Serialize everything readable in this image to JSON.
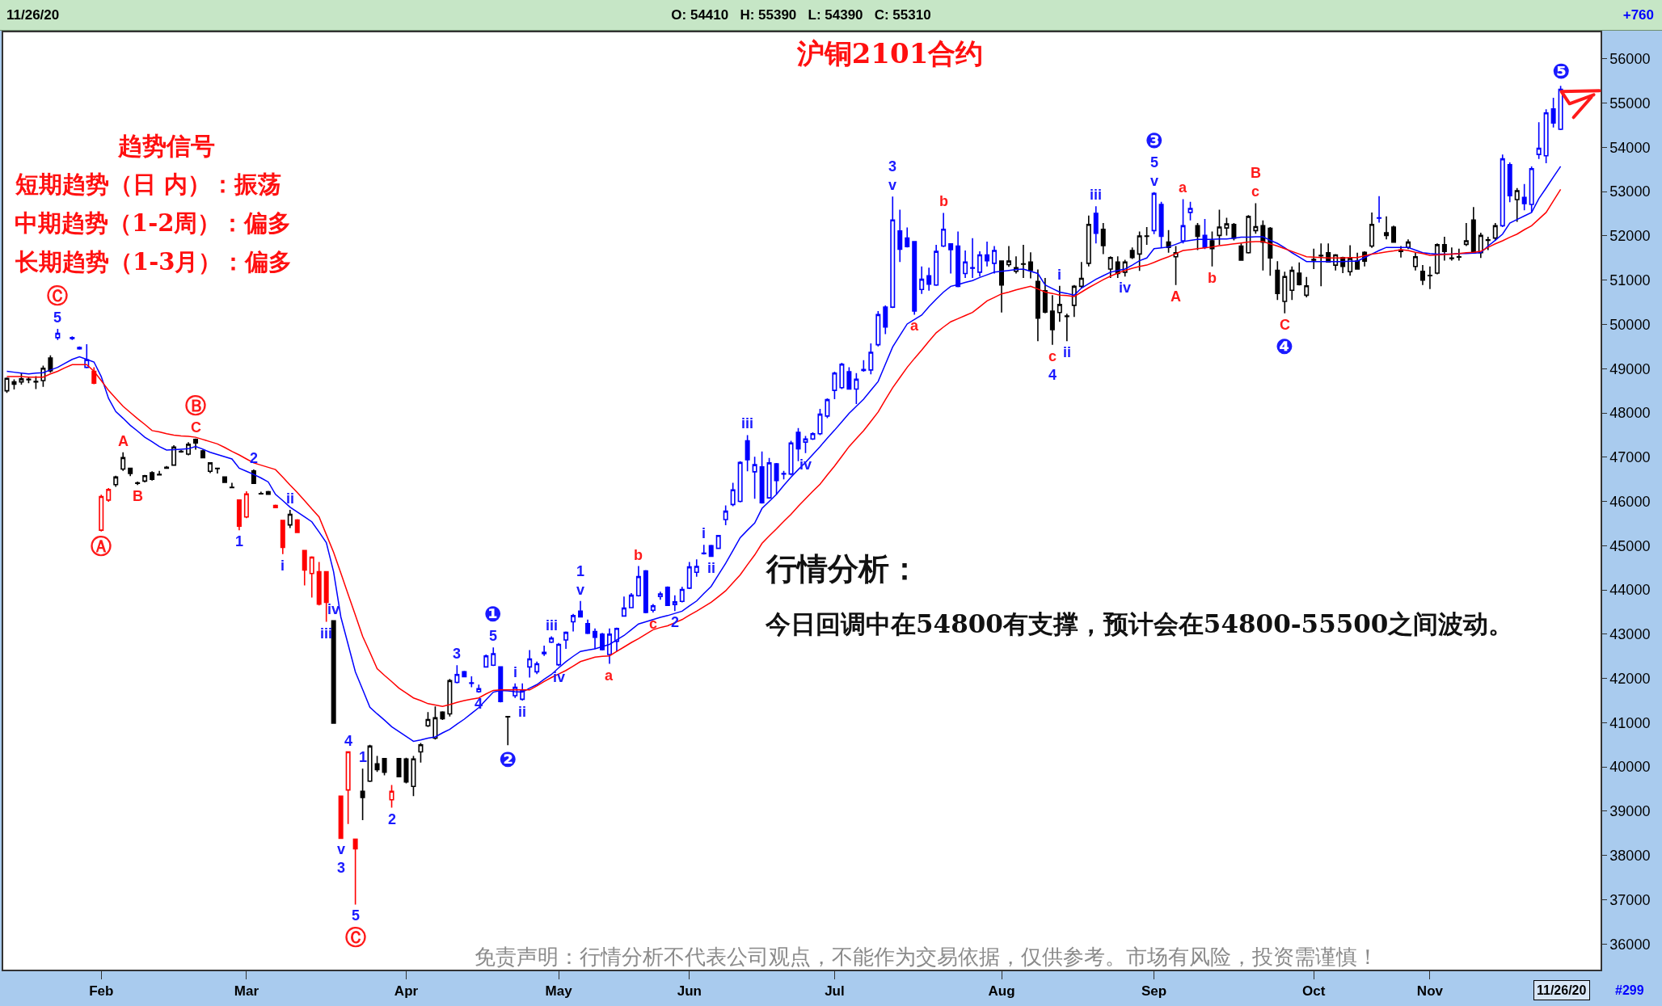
{
  "chart_data": {
    "type": "candlestick",
    "title": "沪铜2101合约",
    "annotations": [
      "11/26/20",
      "O: 54410   H: 55390   L: 54390   C: 55310",
      "+760",
      "趋势信号",
      "短期趋势（日 内）：振荡",
      "中期趋势（1-2周）：偏多",
      "长期趋势（1-3月）：偏多",
      "行情分析：",
      "今日回调中在54800有支撑，预计会在54800-55500之间波动。",
      "免责声明：行情分析不代表公司观点，不能作为交易依据，仅供参考。市场有风险，投资需谨慎！",
      "11/26/20",
      "#299",
      {
        "text": "5",
        "y": 49900
      },
      {
        "text": "Ⓒ",
        "y": 49900
      },
      {
        "text": "Ⓐ",
        "y": 45320
      },
      {
        "text": "A",
        "y": 47110
      },
      {
        "text": "B",
        "y": 46370
      },
      {
        "text": "C",
        "y": 47420
      },
      {
        "text": "Ⓑ",
        "y": 47420
      },
      {
        "text": "1",
        "y": 45350
      },
      {
        "text": "2",
        "y": 46720
      },
      {
        "text": "i",
        "y": 44810
      },
      {
        "text": "ii",
        "y": 45810
      },
      {
        "text": "iii",
        "y": 43280
      },
      {
        "text": "iv",
        "y": 43310
      },
      {
        "text": "v",
        "y": 38390
      },
      {
        "text": "3",
        "y": 38390
      },
      {
        "text": "4",
        "y": 40340
      },
      {
        "text": "5",
        "y": 36890
      },
      {
        "text": "Ⓒ",
        "y": 36890
      },
      {
        "text": "1",
        "y": 39960
      },
      {
        "text": "2",
        "y": 39080
      },
      {
        "text": "3",
        "y": 42300
      },
      {
        "text": "4",
        "y": 41680
      },
      {
        "text": "5",
        "y": 42700
      },
      {
        "text": "❶",
        "y": 42700
      },
      {
        "text": "❷",
        "y": 40490
      },
      {
        "text": "i",
        "y": 41890
      },
      {
        "text": "ii",
        "y": 41500
      },
      {
        "text": "iii",
        "y": 42950
      },
      {
        "text": "iv",
        "y": 42280
      },
      {
        "text": "v",
        "y": 43750
      },
      {
        "text": "1",
        "y": 43750
      },
      {
        "text": "a",
        "y": 42330
      },
      {
        "text": "b",
        "y": 44540
      },
      {
        "text": "c",
        "y": 43490
      },
      {
        "text": "2",
        "y": 43520
      },
      {
        "text": "i",
        "y": 45020
      },
      {
        "text": "ii",
        "y": 44750
      },
      {
        "text": "iii",
        "y": 47500
      },
      {
        "text": "iv",
        "y": 47090
      },
      {
        "text": "v",
        "y": 52890
      },
      {
        "text": "3",
        "y": 52890
      },
      {
        "text": "a",
        "y": 50220
      },
      {
        "text": "b",
        "y": 52520
      },
      {
        "text": "c",
        "y": 49540
      },
      {
        "text": "4",
        "y": 49540
      },
      {
        "text": "i",
        "y": 50870
      },
      {
        "text": "ii",
        "y": 49620
      },
      {
        "text": "iii",
        "y": 52670
      },
      {
        "text": "iv",
        "y": 51080
      },
      {
        "text": "v",
        "y": 52990
      },
      {
        "text": "5",
        "y": 52990
      },
      {
        "text": "❸",
        "y": 52990
      },
      {
        "text": "A",
        "y": 50890
      },
      {
        "text": "a",
        "y": 52830
      },
      {
        "text": "b",
        "y": 51310
      },
      {
        "text": "c",
        "y": 52740
      },
      {
        "text": "B",
        "y": 52740
      },
      {
        "text": "C",
        "y": 50250
      },
      {
        "text": "❹",
        "y": 50250
      },
      {
        "text": "❺",
        "y": 55390
      }
    ],
    "categories": [
      null,
      null,
      null,
      null,
      null,
      null,
      null,
      null,
      null,
      null,
      null,
      null,
      null,
      "Feb",
      null,
      null,
      null,
      null,
      null,
      null,
      null,
      null,
      null,
      null,
      null,
      null,
      null,
      null,
      null,
      null,
      null,
      null,
      null,
      "Mar",
      null,
      null,
      null,
      null,
      null,
      null,
      null,
      null,
      null,
      null,
      null,
      null,
      null,
      null,
      null,
      null,
      null,
      null,
      null,
      null,
      null,
      "Apr",
      null,
      null,
      null,
      null,
      null,
      null,
      null,
      null,
      null,
      null,
      null,
      null,
      null,
      null,
      null,
      null,
      null,
      null,
      null,
      null,
      "May",
      null,
      null,
      null,
      null,
      null,
      null,
      null,
      null,
      null,
      null,
      null,
      null,
      null,
      null,
      null,
      null,
      null,
      "Jun",
      null,
      null,
      null,
      null,
      null,
      null,
      null,
      null,
      null,
      null,
      null,
      null,
      null,
      null,
      null,
      null,
      null,
      null,
      null,
      "Jul",
      null,
      null,
      null,
      null,
      null,
      null,
      null,
      null,
      null,
      null,
      null,
      null,
      null,
      null,
      null,
      null,
      null,
      null,
      null,
      null,
      null,
      null,
      "Aug",
      null,
      null,
      null,
      null,
      null,
      null,
      null,
      null,
      null,
      null,
      null,
      null,
      null,
      null,
      null,
      null,
      null,
      null,
      null,
      null,
      "Sep",
      null,
      null,
      null,
      null,
      null,
      null,
      null,
      null,
      null,
      null,
      null,
      null,
      null,
      null,
      null,
      null,
      null,
      null,
      null,
      null,
      null,
      "Oct",
      null,
      null,
      null,
      null,
      null,
      null,
      null,
      null,
      null,
      null,
      null,
      null,
      null,
      null,
      null,
      "Nov",
      null,
      null,
      null,
      null,
      null,
      null,
      null,
      null,
      null,
      null,
      null,
      null,
      null,
      null,
      null,
      null,
      null,
      null,
      null,
      null,
      null,
      null,
      null
    ],
    "ohlc": [
      [
        48500,
        48800,
        48450,
        48780
      ],
      [
        48700,
        48760,
        48530,
        48650
      ],
      [
        48700,
        48910,
        48640,
        48770
      ],
      [
        48750,
        48820,
        48670,
        48760
      ],
      [
        48710,
        48830,
        48540,
        48700
      ],
      [
        48730,
        49070,
        48590,
        49010
      ],
      [
        49240,
        49300,
        48910,
        48950
      ],
      [
        49700,
        49900,
        49650,
        49800
      ],
      null,
      [
        49700,
        49730,
        49650,
        49680
      ],
      [
        49480,
        49500,
        49430,
        49450
      ],
      [
        49030,
        49550,
        49010,
        49200
      ],
      [
        48940,
        49030,
        48650,
        48670
      ],
      [
        45350,
        46150,
        45320,
        46110
      ],
      [
        46030,
        46300,
        45990,
        46270
      ],
      [
        46380,
        46580,
        46330,
        46550
      ],
      [
        46730,
        47110,
        46690,
        46990
      ],
      [
        46750,
        46760,
        46570,
        46630
      ],
      [
        46420,
        46450,
        46370,
        46410
      ],
      [
        46460,
        46600,
        46430,
        46580
      ],
      [
        46650,
        46680,
        46470,
        46500
      ],
      [
        46610,
        46690,
        46590,
        46600
      ],
      [
        46770,
        46800,
        46740,
        46750
      ],
      [
        46820,
        47270,
        46810,
        47230
      ],
      [
        47130,
        47160,
        47100,
        47120
      ],
      [
        47070,
        47340,
        47040,
        47290
      ],
      [
        47400,
        47420,
        47170,
        47320
      ],
      [
        47140,
        47170,
        46980,
        46990
      ],
      [
        46680,
        46880,
        46640,
        46870
      ],
      [
        46750,
        46760,
        46630,
        46740
      ],
      [
        46550,
        46560,
        46420,
        46430
      ],
      [
        46320,
        46420,
        46300,
        46310
      ],
      [
        46030,
        46040,
        45350,
        45440
      ],
      [
        45650,
        46230,
        45620,
        46170
      ],
      [
        46690,
        46720,
        46400,
        46410
      ],
      [
        46180,
        46220,
        46160,
        46170
      ],
      [
        46220,
        46240,
        46150,
        46160
      ],
      [
        45910,
        45930,
        45850,
        45860
      ],
      [
        45570,
        45580,
        44810,
        44960
      ],
      [
        45470,
        45810,
        45400,
        45710
      ],
      [
        45580,
        45600,
        45290,
        45300
      ],
      [
        44890,
        44900,
        44100,
        44450
      ],
      [
        44370,
        44760,
        43830,
        44740
      ],
      [
        44410,
        44630,
        43650,
        43680
      ],
      [
        44410,
        44420,
        43280,
        43720
      ],
      [
        43300,
        43310,
        40990,
        40990
      ],
      [
        39340,
        39350,
        38390,
        38390
      ],
      [
        39480,
        40340,
        38710,
        40340
      ],
      [
        38370,
        38380,
        36890,
        38150
      ],
      [
        39450,
        39960,
        38800,
        39310
      ],
      [
        39680,
        40500,
        39660,
        40470
      ],
      [
        40070,
        40250,
        39890,
        39940
      ],
      [
        40190,
        40200,
        39810,
        39880
      ],
      [
        39260,
        39590,
        39080,
        39450
      ],
      [
        40190,
        40200,
        39770,
        39780
      ],
      [
        40180,
        40210,
        39630,
        39660
      ],
      [
        39560,
        40250,
        39340,
        40180
      ],
      [
        40340,
        40540,
        40100,
        40500
      ],
      [
        40930,
        41240,
        40900,
        41070
      ],
      [
        40650,
        41370,
        40620,
        41110
      ],
      [
        41240,
        41260,
        41060,
        41090
      ],
      [
        41200,
        41990,
        41140,
        41950
      ],
      [
        41910,
        42300,
        41890,
        42090
      ],
      [
        42150,
        42170,
        42030,
        42040
      ],
      [
        41900,
        42050,
        41800,
        41890
      ],
      [
        41700,
        41860,
        41680,
        41770
      ],
      [
        42260,
        42540,
        42250,
        42510
      ],
      [
        42300,
        42700,
        42280,
        42560
      ],
      [
        42260,
        42270,
        41460,
        41480
      ],
      [
        41140,
        41150,
        40490,
        41130
      ],
      [
        41610,
        41890,
        41560,
        41800
      ],
      [
        41530,
        41890,
        41500,
        41730
      ],
      [
        42260,
        42640,
        42020,
        42440
      ],
      [
        42150,
        42380,
        42100,
        42330
      ],
      [
        42560,
        42740,
        42510,
        42590
      ],
      [
        42820,
        42950,
        42800,
        42910
      ],
      [
        42310,
        42800,
        42280,
        42770
      ],
      [
        42870,
        43060,
        42670,
        43040
      ],
      [
        43280,
        43460,
        43060,
        43420
      ],
      [
        43520,
        43750,
        43380,
        43390
      ],
      [
        43240,
        43330,
        43000,
        43020
      ],
      [
        43060,
        43130,
        42670,
        42930
      ],
      [
        43000,
        43030,
        42630,
        42650
      ],
      [
        42540,
        43130,
        42330,
        43000
      ],
      [
        42840,
        43150,
        42610,
        43130
      ],
      [
        43410,
        43850,
        43400,
        43590
      ],
      [
        43600,
        43930,
        43590,
        43880
      ],
      [
        43870,
        44540,
        43850,
        44300
      ],
      [
        44430,
        44450,
        43470,
        43490
      ],
      [
        43540,
        43680,
        43490,
        43640
      ],
      [
        43850,
        43960,
        43780,
        43910
      ],
      [
        44060,
        44080,
        43640,
        43650
      ],
      [
        43670,
        43880,
        43520,
        43730
      ],
      [
        43740,
        44070,
        43720,
        44010
      ],
      [
        44040,
        44630,
        44020,
        44520
      ],
      [
        44400,
        44690,
        44300,
        44530
      ],
      [
        44820,
        45020,
        44800,
        44830
      ],
      [
        45000,
        45020,
        44750,
        44760
      ],
      [
        44940,
        45240,
        44930,
        45230
      ],
      [
        45590,
        45910,
        45460,
        45780
      ],
      [
        45930,
        46420,
        45890,
        46260
      ],
      [
        46000,
        46910,
        45980,
        46880
      ],
      [
        47370,
        47500,
        46680,
        46940
      ],
      [
        46670,
        47010,
        46060,
        46830
      ],
      [
        46780,
        47130,
        45950,
        45970
      ],
      [
        46080,
        46980,
        46060,
        46870
      ],
      [
        46850,
        46870,
        46160,
        46470
      ],
      [
        46620,
        46690,
        46500,
        46630
      ],
      [
        46620,
        47370,
        46590,
        47320
      ],
      [
        47560,
        47660,
        46910,
        47190
      ],
      [
        47340,
        47480,
        47090,
        47410
      ],
      [
        47410,
        47560,
        47390,
        47530
      ],
      [
        47530,
        48090,
        47500,
        47970
      ],
      [
        47930,
        48330,
        47880,
        48300
      ],
      [
        48510,
        48930,
        48310,
        48900
      ],
      [
        48570,
        49130,
        48540,
        49100
      ],
      [
        48930,
        49030,
        48530,
        48540
      ],
      [
        48540,
        48900,
        48200,
        48760
      ],
      [
        48960,
        49190,
        48930,
        48980
      ],
      [
        48970,
        49570,
        48870,
        49370
      ],
      [
        49540,
        50300,
        49500,
        50220
      ],
      [
        50390,
        50430,
        49780,
        49940
      ],
      [
        50390,
        52890,
        50370,
        52360
      ],
      [
        52110,
        52590,
        51410,
        51700
      ],
      [
        51950,
        52190,
        51740,
        51760
      ],
      [
        51870,
        51880,
        50220,
        50300
      ],
      [
        50790,
        51310,
        50690,
        51020
      ],
      [
        51100,
        51280,
        50760,
        50910
      ],
      [
        50890,
        51800,
        50870,
        51650
      ],
      [
        51770,
        52520,
        51750,
        52150
      ],
      [
        51820,
        51830,
        51150,
        51690
      ],
      [
        51770,
        52100,
        50840,
        50860
      ],
      [
        51150,
        51670,
        51050,
        51410
      ],
      [
        51270,
        51950,
        51050,
        51280
      ],
      [
        51180,
        51650,
        51080,
        51570
      ],
      [
        51570,
        51870,
        51310,
        51440
      ],
      [
        51380,
        51770,
        51150,
        51670
      ],
      [
        51430,
        51440,
        50270,
        50890
      ],
      [
        51350,
        51770,
        51300,
        51430
      ],
      [
        51200,
        51540,
        51150,
        51280
      ],
      [
        51360,
        51800,
        51050,
        51370
      ],
      [
        51410,
        51630,
        51040,
        51220
      ],
      [
        50970,
        51240,
        49620,
        50140
      ],
      [
        50760,
        51050,
        50250,
        50280
      ],
      [
        50300,
        50660,
        49540,
        49880
      ],
      [
        50270,
        50870,
        50060,
        50450
      ],
      [
        50190,
        50240,
        49620,
        50180
      ],
      [
        50430,
        50890,
        50170,
        50860
      ],
      [
        50860,
        51410,
        50820,
        51040
      ],
      [
        51380,
        52460,
        51310,
        52260
      ],
      [
        52510,
        52670,
        51830,
        52060
      ],
      [
        52150,
        52290,
        51590,
        51780
      ],
      [
        51250,
        51540,
        51050,
        51510
      ],
      [
        51410,
        51540,
        51050,
        51150
      ],
      [
        51180,
        51460,
        51080,
        51410
      ],
      [
        51670,
        51740,
        51480,
        51510
      ],
      [
        51590,
        52100,
        51210,
        52000
      ],
      [
        51990,
        52200,
        51800,
        52000
      ],
      [
        52120,
        52990,
        52040,
        52960
      ],
      [
        52710,
        52770,
        51740,
        51990
      ],
      [
        51860,
        52130,
        51620,
        51740
      ],
      [
        51530,
        51770,
        50890,
        51620
      ],
      [
        51890,
        52830,
        51830,
        52230
      ],
      [
        52530,
        52770,
        52350,
        52620
      ],
      [
        52230,
        52290,
        51680,
        51990
      ],
      [
        52010,
        52380,
        51700,
        51740
      ],
      [
        51890,
        52100,
        51310,
        51710
      ],
      [
        52010,
        52590,
        51800,
        52200
      ],
      [
        52180,
        52410,
        52010,
        52270
      ],
      [
        52260,
        52290,
        51900,
        51950
      ],
      [
        51770,
        51830,
        51440,
        51450
      ],
      [
        51620,
        52470,
        51600,
        52440
      ],
      [
        52120,
        52740,
        52050,
        52210
      ],
      [
        52230,
        52350,
        51220,
        51860
      ],
      [
        52170,
        52200,
        51100,
        51500
      ],
      [
        51220,
        51430,
        50550,
        50700
      ],
      [
        50520,
        51190,
        50250,
        51080
      ],
      [
        50770,
        51310,
        50550,
        51220
      ],
      [
        51160,
        51400,
        50880,
        50900
      ],
      [
        50660,
        51070,
        50610,
        50870
      ],
      [
        51450,
        51710,
        51250,
        51470
      ],
      [
        51550,
        51830,
        50860,
        51560
      ],
      [
        51620,
        51830,
        51400,
        51410
      ],
      [
        51340,
        51590,
        51220,
        51570
      ],
      [
        51510,
        51530,
        51160,
        51310
      ],
      [
        51190,
        51790,
        51100,
        51490
      ],
      [
        51430,
        51620,
        51240,
        51250
      ],
      [
        51630,
        51650,
        51310,
        51430
      ],
      [
        51770,
        52530,
        51730,
        52260
      ],
      [
        52400,
        52900,
        52300,
        52410
      ],
      [
        52070,
        52440,
        51920,
        52010
      ],
      [
        52200,
        52230,
        51850,
        51860
      ],
      [
        51650,
        51770,
        51510,
        51680
      ],
      [
        51740,
        51920,
        51700,
        51860
      ],
      [
        51310,
        51620,
        51220,
        51530
      ],
      [
        51200,
        51340,
        50890,
        51000
      ],
      [
        51100,
        51310,
        50800,
        51110
      ],
      [
        51160,
        51830,
        51130,
        51800
      ],
      [
        51800,
        51980,
        51440,
        51650
      ],
      [
        51500,
        51740,
        51440,
        51490
      ],
      [
        51520,
        51710,
        51440,
        51530
      ],
      [
        51810,
        52290,
        51770,
        51890
      ],
      [
        52360,
        52650,
        51600,
        51620
      ],
      [
        51620,
        52070,
        51500,
        52010
      ],
      [
        51910,
        51980,
        51680,
        51900
      ],
      [
        51950,
        52290,
        51890,
        52230
      ],
      [
        52230,
        53840,
        52200,
        53740
      ],
      [
        53610,
        53660,
        52760,
        52910
      ],
      [
        52820,
        53080,
        52320,
        53020
      ],
      [
        52870,
        53170,
        52580,
        52730
      ],
      [
        52710,
        53570,
        52540,
        53520
      ],
      [
        53840,
        54570,
        53740,
        53980
      ],
      [
        53810,
        54860,
        53640,
        54780
      ],
      [
        54870,
        55120,
        54450,
        54550
      ],
      [
        54410,
        55390,
        54390,
        55310
      ],
      null,
      null,
      null,
      null,
      null
    ],
    "colors": [
      "#000000",
      "#000000",
      "#000000",
      "#000000",
      "#000000",
      "#000000",
      "#000000",
      "#0000ff",
      null,
      "#0000ff",
      "#0000ff",
      "#0000ff",
      "#ff0000",
      "#ff0000",
      "#ff0000",
      "#000000",
      "#000000",
      "#000000",
      "#000000",
      "#000000",
      "#000000",
      "#000000",
      "#000000",
      "#000000",
      "#000000",
      "#000000",
      "#000000",
      "#000000",
      "#000000",
      "#000000",
      "#000000",
      "#000000",
      "#ff0000",
      "#ff0000",
      "#000000",
      "#000000",
      "#000000",
      "#ff0000",
      "#ff0000",
      "#000000",
      "#ff0000",
      "#ff0000",
      "#ff0000",
      "#ff0000",
      "#ff0000",
      "#000000",
      "#ff0000",
      "#ff0000",
      "#ff0000",
      "#000000",
      "#000000",
      "#000000",
      "#000000",
      "#ff0000",
      "#000000",
      "#000000",
      "#000000",
      "#000000",
      "#000000",
      "#000000",
      "#000000",
      "#000000",
      "#0000ff",
      "#0000ff",
      "#0000ff",
      "#0000ff",
      "#0000ff",
      "#0000ff",
      "#0000ff",
      "#000000",
      "#0000ff",
      "#0000ff",
      "#0000ff",
      "#0000ff",
      "#0000ff",
      "#0000ff",
      "#0000ff",
      "#0000ff",
      "#0000ff",
      "#0000ff",
      "#0000ff",
      "#0000ff",
      "#0000ff",
      "#0000ff",
      "#0000ff",
      "#0000ff",
      "#0000ff",
      "#0000ff",
      "#0000ff",
      "#0000ff",
      "#0000ff",
      "#0000ff",
      "#0000ff",
      "#0000ff",
      "#0000ff",
      "#0000ff",
      "#0000ff",
      "#0000ff",
      "#0000ff",
      "#0000ff",
      "#0000ff",
      "#0000ff",
      "#0000ff",
      "#0000ff",
      "#0000ff",
      "#0000ff",
      "#0000ff",
      "#0000ff",
      "#0000ff",
      "#0000ff",
      "#0000ff",
      "#0000ff",
      "#0000ff",
      "#0000ff",
      "#0000ff",
      "#0000ff",
      "#0000ff",
      "#0000ff",
      "#0000ff",
      "#0000ff",
      "#0000ff",
      "#0000ff",
      "#0000ff",
      "#0000ff",
      "#0000ff",
      "#0000ff",
      "#0000ff",
      "#0000ff",
      "#0000ff",
      "#0000ff",
      "#0000ff",
      "#0000ff",
      "#0000ff",
      "#0000ff",
      "#0000ff",
      "#0000ff",
      "#0000ff",
      "#000000",
      "#000000",
      "#000000",
      "#000000",
      "#000000",
      "#000000",
      "#000000",
      "#000000",
      "#000000",
      "#000000",
      "#000000",
      "#000000",
      "#000000",
      "#0000ff",
      "#000000",
      "#000000",
      "#000000",
      "#000000",
      "#000000",
      "#000000",
      "#000000",
      "#0000ff",
      "#0000ff",
      "#000000",
      "#000000",
      "#0000ff",
      "#0000ff",
      "#000000",
      "#0000ff",
      "#000000",
      "#000000",
      "#000000",
      "#000000",
      "#000000",
      "#000000",
      "#000000",
      "#000000",
      "#000000",
      "#000000",
      "#000000",
      "#000000",
      "#000000",
      "#000000",
      "#000000",
      "#000000",
      "#000000",
      "#000000",
      "#000000",
      "#000000",
      "#000000",
      "#000000",
      "#000000",
      "#0000ff",
      "#000000",
      "#000000",
      "#000000",
      "#000000",
      "#000000",
      "#000000",
      "#000000",
      "#000000",
      "#000000",
      "#000000",
      "#000000",
      "#000000",
      "#000000",
      "#000000",
      "#000000",
      "#000000",
      "#0000ff",
      "#0000ff",
      "#000000",
      "#0000ff",
      "#0000ff",
      "#0000ff",
      "#0000ff",
      "#0000ff",
      "#0000ff",
      null,
      null,
      null,
      null,
      null
    ],
    "series": [
      {
        "type": "line",
        "color": "#0000ff",
        "values": [
          48940,
          48920,
          48900,
          48880,
          48900,
          48910,
          48970,
          49030,
          49120,
          49210,
          49270,
          49210,
          49150,
          48820,
          48330,
          48030,
          47880,
          47720,
          47590,
          47450,
          47350,
          47240,
          47160,
          47170,
          47180,
          47190,
          47240,
          47180,
          47110,
          47060,
          47010,
          46960,
          46750,
          46680,
          46610,
          46530,
          46440,
          46160,
          46020,
          45870,
          45760,
          45650,
          45540,
          45310,
          45070,
          44410,
          43390,
          42770,
          42150,
          41750,
          41350,
          41200,
          41060,
          40910,
          40800,
          40690,
          40580,
          40610,
          40650,
          40680,
          40770,
          40850,
          40970,
          41080,
          41210,
          41340,
          41520,
          41690,
          41730,
          41720,
          41700,
          41690,
          41780,
          41860,
          41980,
          42090,
          42240,
          42380,
          42500,
          42610,
          42640,
          42670,
          42720,
          42770,
          42870,
          42970,
          43100,
          43230,
          43280,
          43330,
          43380,
          43420,
          43470,
          43520,
          43640,
          43750,
          43920,
          44080,
          44340,
          44600,
          44890,
          45180,
          45350,
          45510,
          45840,
          46000,
          46160,
          46360,
          46550,
          46720,
          46880,
          47060,
          47240,
          47430,
          47610,
          47800,
          47990,
          48150,
          48310,
          48510,
          48710,
          49100,
          49490,
          49750,
          50010,
          50110,
          50210,
          50400,
          50570,
          50730,
          50860,
          50900,
          50950,
          50990,
          51060,
          51120,
          51180,
          51200,
          51220,
          51240,
          51250,
          51200,
          51150,
          50890,
          50810,
          50730,
          50700,
          50660,
          50820,
          50920,
          51020,
          51100,
          51180,
          51220,
          51250,
          51340,
          51440,
          51500,
          51710,
          51730,
          51750,
          51810,
          51870,
          51900,
          51920,
          51920,
          51920,
          51930,
          51930,
          51950,
          51970,
          51970,
          51980,
          51980,
          51900,
          51830,
          51730,
          51620,
          51520,
          51420,
          51420,
          51420,
          51420,
          51420,
          51420,
          51430,
          51430,
          51510,
          51590,
          51670,
          51740,
          51740,
          51740,
          51740,
          51680,
          51620,
          51600,
          51590,
          51590,
          51590,
          51600,
          51600,
          51610,
          51620,
          51770,
          51900,
          52040,
          52290,
          52370,
          52450,
          52530,
          52840,
          53080,
          53330,
          53570,
          null,
          null,
          null,
          null,
          null
        ]
      },
      {
        "type": "line",
        "color": "#ff0000",
        "values": [
          48820,
          48820,
          48820,
          48810,
          48810,
          48810,
          48880,
          48940,
          49020,
          49090,
          49090,
          49090,
          48940,
          48730,
          48510,
          48330,
          48150,
          48010,
          47870,
          47740,
          47600,
          47570,
          47530,
          47500,
          47480,
          47470,
          47450,
          47400,
          47350,
          47300,
          47220,
          47130,
          47050,
          46960,
          46870,
          46820,
          46770,
          46720,
          46550,
          46370,
          46200,
          46020,
          45830,
          45650,
          45250,
          44850,
          44380,
          43900,
          43430,
          42950,
          42590,
          42220,
          42070,
          41930,
          41780,
          41670,
          41560,
          41500,
          41430,
          41400,
          41370,
          41410,
          41460,
          41500,
          41530,
          41560,
          41650,
          41730,
          41740,
          41740,
          41740,
          41740,
          41740,
          41830,
          41930,
          42020,
          42100,
          42180,
          42280,
          42380,
          42430,
          42480,
          42500,
          42510,
          42610,
          42710,
          42810,
          42900,
          43000,
          43100,
          43150,
          43190,
          43260,
          43330,
          43430,
          43520,
          43620,
          43720,
          43850,
          43980,
          44160,
          44340,
          44570,
          44790,
          45050,
          45220,
          45380,
          45550,
          45710,
          45890,
          46060,
          46230,
          46390,
          46600,
          46800,
          47020,
          47240,
          47420,
          47600,
          47810,
          48020,
          48300,
          48570,
          48800,
          49030,
          49230,
          49420,
          49620,
          49810,
          49940,
          50060,
          50130,
          50200,
          50270,
          50400,
          50530,
          50610,
          50690,
          50730,
          50780,
          50820,
          50860,
          50800,
          50730,
          50700,
          50660,
          50650,
          50630,
          50730,
          50830,
          50920,
          51010,
          51090,
          51160,
          51220,
          51270,
          51310,
          51340,
          51400,
          51470,
          51530,
          51600,
          51670,
          51690,
          51710,
          51730,
          51750,
          51780,
          51800,
          51820,
          51840,
          51860,
          51870,
          51870,
          51820,
          51770,
          51710,
          51650,
          51590,
          51530,
          51520,
          51510,
          51500,
          51500,
          51500,
          51510,
          51510,
          51550,
          51590,
          51610,
          51640,
          51660,
          51690,
          51670,
          51630,
          51600,
          51560,
          51570,
          51580,
          51590,
          51600,
          51620,
          51630,
          51650,
          51740,
          51820,
          51890,
          51970,
          52040,
          52140,
          52230,
          52380,
          52530,
          52790,
          53050,
          null,
          null,
          null,
          null,
          null
        ]
      }
    ],
    "ylim": [
      35420,
      56600
    ],
    "yticks": [
      36000,
      37000,
      38000,
      39000,
      40000,
      41000,
      42000,
      43000,
      44000,
      45000,
      46000,
      47000,
      48000,
      49000,
      50000,
      51000,
      52000,
      53000,
      54000,
      55000,
      56000
    ]
  }
}
